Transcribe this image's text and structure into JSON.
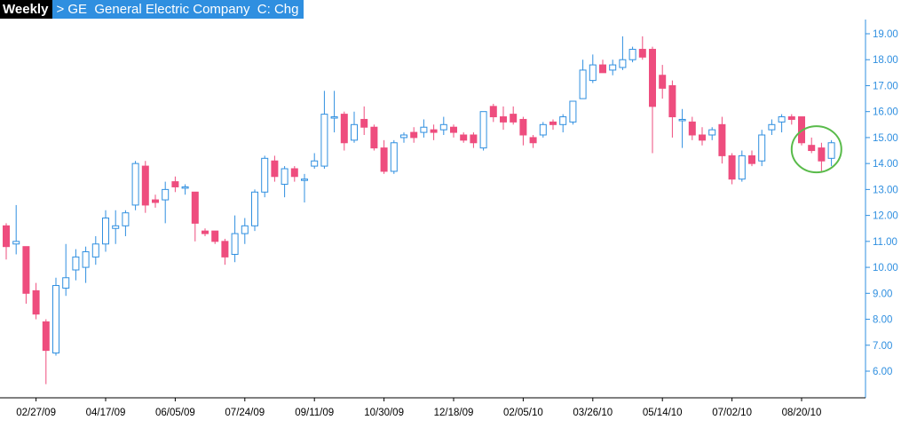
{
  "header": {
    "timeframe": "Weekly",
    "symbol_line": "> GE  General Electric Company  C: Chg"
  },
  "colors": {
    "up": "#2f8fe0",
    "down": "#ee4d7e",
    "axis": "#2f8fe0",
    "header_bg": "#2f8fe0",
    "annotation": "#59bb4a"
  },
  "chart_data": {
    "type": "candlestick",
    "title": "",
    "ylim": [
      5.0,
      19.4
    ],
    "y_ticks": [
      "6.00",
      "7.00",
      "8.00",
      "9.00",
      "10.00",
      "11.00",
      "12.00",
      "13.00",
      "14.00",
      "15.00",
      "16.00",
      "17.00",
      "18.00",
      "19.00"
    ],
    "x_ticks": [
      "02/27/09",
      "04/17/09",
      "06/05/09",
      "07/24/09",
      "09/11/09",
      "10/30/09",
      "12/18/09",
      "02/05/10",
      "03/26/10",
      "05/14/10",
      "07/02/10",
      "08/20/10"
    ],
    "annotation": "circle around final weekly candles",
    "candles": [
      [
        11.6,
        11.7,
        10.3,
        10.8
      ],
      [
        10.9,
        12.4,
        10.5,
        11.0
      ],
      [
        10.8,
        10.8,
        8.6,
        9.0
      ],
      [
        9.1,
        9.4,
        8.0,
        8.2
      ],
      [
        7.9,
        8.0,
        5.5,
        6.8
      ],
      [
        6.7,
        9.6,
        6.6,
        9.3
      ],
      [
        9.2,
        10.9,
        8.9,
        9.6
      ],
      [
        9.9,
        10.7,
        9.5,
        10.4
      ],
      [
        10.0,
        10.8,
        9.4,
        10.6
      ],
      [
        10.4,
        11.2,
        10.1,
        10.9
      ],
      [
        10.9,
        12.2,
        10.6,
        11.9
      ],
      [
        11.5,
        12.2,
        10.9,
        11.6
      ],
      [
        11.6,
        12.2,
        11.2,
        12.1
      ],
      [
        12.4,
        14.1,
        12.2,
        14.0
      ],
      [
        13.9,
        14.1,
        12.1,
        12.4
      ],
      [
        12.6,
        12.8,
        12.3,
        12.5
      ],
      [
        12.6,
        13.3,
        11.7,
        13.0
      ],
      [
        13.3,
        13.5,
        12.9,
        13.1
      ],
      [
        13.1,
        13.2,
        12.8,
        13.1
      ],
      [
        12.9,
        12.9,
        11.0,
        11.7
      ],
      [
        11.4,
        11.5,
        11.2,
        11.3
      ],
      [
        11.4,
        11.4,
        10.9,
        11.0
      ],
      [
        11.0,
        11.1,
        10.1,
        10.4
      ],
      [
        10.5,
        12.0,
        10.2,
        11.3
      ],
      [
        11.3,
        11.9,
        10.9,
        11.6
      ],
      [
        11.6,
        13.0,
        11.4,
        12.9
      ],
      [
        12.9,
        14.3,
        12.7,
        14.2
      ],
      [
        14.1,
        14.3,
        13.3,
        13.5
      ],
      [
        13.2,
        13.9,
        12.7,
        13.8
      ],
      [
        13.8,
        13.9,
        13.3,
        13.5
      ],
      [
        13.4,
        13.6,
        12.5,
        13.4
      ],
      [
        13.9,
        14.4,
        13.8,
        14.1
      ],
      [
        13.9,
        16.8,
        13.8,
        15.9
      ],
      [
        15.8,
        16.8,
        15.2,
        15.8
      ],
      [
        15.9,
        16.0,
        14.5,
        14.8
      ],
      [
        14.9,
        16.0,
        14.8,
        15.5
      ],
      [
        15.7,
        16.2,
        15.1,
        15.4
      ],
      [
        15.4,
        15.5,
        14.5,
        14.6
      ],
      [
        14.6,
        14.9,
        13.6,
        13.7
      ],
      [
        13.7,
        14.9,
        13.6,
        14.8
      ],
      [
        15.0,
        15.2,
        14.8,
        15.1
      ],
      [
        15.2,
        15.4,
        14.8,
        15.0
      ],
      [
        15.2,
        15.7,
        15.0,
        15.4
      ],
      [
        15.3,
        15.5,
        14.9,
        15.2
      ],
      [
        15.3,
        15.8,
        15.1,
        15.5
      ],
      [
        15.4,
        15.5,
        15.0,
        15.2
      ],
      [
        15.1,
        15.2,
        14.8,
        14.9
      ],
      [
        15.1,
        15.2,
        14.6,
        14.8
      ],
      [
        14.6,
        16.0,
        14.5,
        16.0
      ],
      [
        16.2,
        16.3,
        15.6,
        15.8
      ],
      [
        15.8,
        16.2,
        15.3,
        15.6
      ],
      [
        15.9,
        16.2,
        15.5,
        15.6
      ],
      [
        15.7,
        15.8,
        14.7,
        15.1
      ],
      [
        15.0,
        15.1,
        14.6,
        14.8
      ],
      [
        15.1,
        15.6,
        15.0,
        15.5
      ],
      [
        15.6,
        15.7,
        15.3,
        15.5
      ],
      [
        15.5,
        15.9,
        15.2,
        15.8
      ],
      [
        15.6,
        16.4,
        15.5,
        16.4
      ],
      [
        16.5,
        18.0,
        16.5,
        17.6
      ],
      [
        17.2,
        18.2,
        17.1,
        17.8
      ],
      [
        17.8,
        18.0,
        17.5,
        17.5
      ],
      [
        17.6,
        18.0,
        17.4,
        17.8
      ],
      [
        17.7,
        18.9,
        17.6,
        18.0
      ],
      [
        18.0,
        18.5,
        17.9,
        18.4
      ],
      [
        18.4,
        18.9,
        18.0,
        18.1
      ],
      [
        18.4,
        18.5,
        14.4,
        16.2
      ],
      [
        17.4,
        17.8,
        16.5,
        16.9
      ],
      [
        17.0,
        17.2,
        15.0,
        15.8
      ],
      [
        15.7,
        16.1,
        14.6,
        15.7
      ],
      [
        15.6,
        15.8,
        14.9,
        15.1
      ],
      [
        15.1,
        15.4,
        14.7,
        14.9
      ],
      [
        15.1,
        15.4,
        14.9,
        15.3
      ],
      [
        15.5,
        15.8,
        14.0,
        14.3
      ],
      [
        14.3,
        14.4,
        13.2,
        13.4
      ],
      [
        13.4,
        14.5,
        13.3,
        14.3
      ],
      [
        14.3,
        14.5,
        13.9,
        14.0
      ],
      [
        14.1,
        15.3,
        13.9,
        15.1
      ],
      [
        15.3,
        15.7,
        15.1,
        15.5
      ],
      [
        15.6,
        15.9,
        15.2,
        15.8
      ],
      [
        15.8,
        15.9,
        15.5,
        15.7
      ],
      [
        15.8,
        15.8,
        14.7,
        14.8
      ],
      [
        14.7,
        15.0,
        14.4,
        14.5
      ],
      [
        14.6,
        14.8,
        13.7,
        14.1
      ],
      [
        14.2,
        14.9,
        13.9,
        14.8
      ]
    ]
  }
}
